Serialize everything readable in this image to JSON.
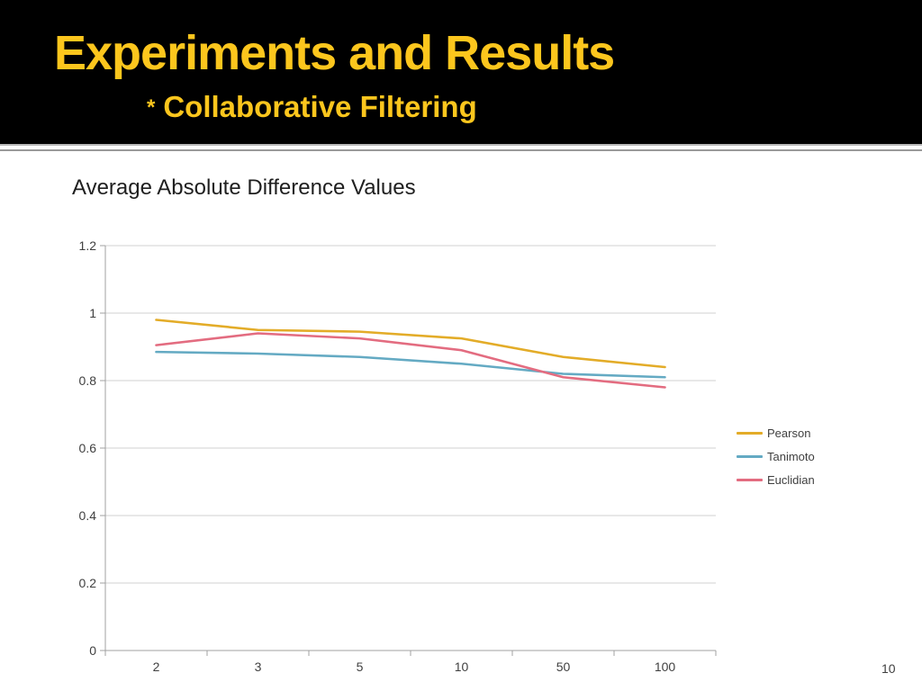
{
  "header": {
    "title": "Experiments and Results",
    "subtitle_bullet": "*",
    "subtitle": "Collaborative Filtering",
    "background_color": "#000000",
    "title_color": "#fcc61d"
  },
  "chart": {
    "title": "Average Absolute Difference Values"
  },
  "chart_data": {
    "type": "line",
    "title": "Average Absolute Difference Values",
    "categories": [
      "2",
      "3",
      "5",
      "10",
      "50",
      "100"
    ],
    "series": [
      {
        "name": "Pearson",
        "color": "#e3ac28",
        "values": [
          0.98,
          0.95,
          0.945,
          0.925,
          0.87,
          0.84
        ]
      },
      {
        "name": "Tanimoto",
        "color": "#64aac3",
        "values": [
          0.885,
          0.88,
          0.87,
          0.85,
          0.82,
          0.81
        ]
      },
      {
        "name": "Euclidian",
        "color": "#e36c80",
        "values": [
          0.905,
          0.94,
          0.925,
          0.89,
          0.81,
          0.78
        ]
      }
    ],
    "ylim": [
      0,
      1.2
    ],
    "ytick_step": 0.2,
    "ytick_labels": [
      "0",
      "0.2",
      "0.4",
      "0.6",
      "0.8",
      "1",
      "1.2"
    ],
    "grid": true,
    "legend_position": "right",
    "xlabel": "",
    "ylabel": "",
    "grid_color": "#d2d2d2",
    "axis_color": "#a0a0a0",
    "tick_label_color": "#3f3f3f"
  },
  "footer": {
    "page_number": "10"
  }
}
